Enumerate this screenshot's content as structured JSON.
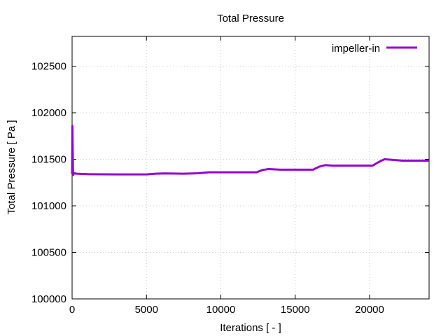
{
  "chart_data": {
    "type": "line",
    "title": "Total Pressure",
    "xlabel": "Iterations [ - ]",
    "ylabel": "Total Pressure [ Pa ]",
    "xlim": [
      0,
      24000
    ],
    "ylim": [
      100000,
      102820
    ],
    "xticks": [
      0,
      5000,
      10000,
      15000,
      20000
    ],
    "yticks": [
      100000,
      100500,
      101000,
      101500,
      102000,
      102500
    ],
    "grid": true,
    "legend_position": "top-right",
    "series": [
      {
        "name": "impeller-in",
        "color": "#9400d3",
        "x": [
          0,
          20,
          60,
          150,
          300,
          1000,
          3000,
          5000,
          5600,
          6200,
          7500,
          8500,
          9200,
          10000,
          12400,
          12800,
          13200,
          14000,
          16200,
          16600,
          17000,
          17500,
          20200,
          20600,
          21000,
          21500,
          22200,
          24000
        ],
        "y": [
          101340,
          101860,
          101330,
          101350,
          101345,
          101340,
          101338,
          101338,
          101345,
          101348,
          101345,
          101350,
          101360,
          101360,
          101360,
          101385,
          101395,
          101388,
          101388,
          101420,
          101437,
          101432,
          101432,
          101470,
          101500,
          101495,
          101485,
          101485
        ]
      }
    ]
  }
}
